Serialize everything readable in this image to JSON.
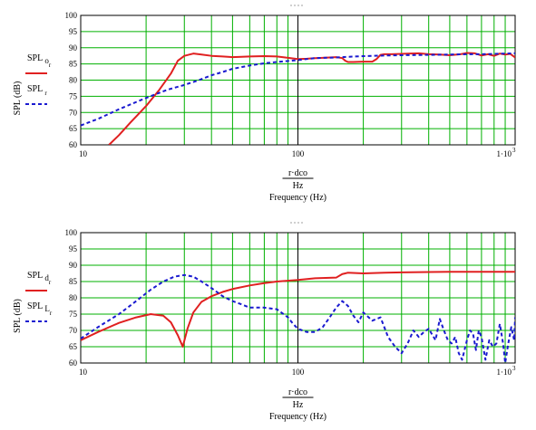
{
  "chart_data": [
    {
      "type": "line",
      "title": "",
      "x_scale": "log",
      "xlim": [
        10,
        1000
      ],
      "ylim": [
        60,
        100
      ],
      "x_ticks": [
        "10",
        "100",
        "1·10"
      ],
      "x_tick_exp": "3",
      "y_ticks": [
        "60",
        "65",
        "70",
        "75",
        "80",
        "85",
        "90",
        "95",
        "100"
      ],
      "ylabel": "SPL (dB)",
      "xlabel_frac_num": "r·dco",
      "xlabel_frac_den": "Hz",
      "xlabel": "Frequency (Hz)",
      "grid": true,
      "legend": "left",
      "series": [
        {
          "name": "SPL",
          "name_sub": "o",
          "name_subsub": "r",
          "color": "#e02020",
          "dash": "solid",
          "x": [
            13.5,
            15,
            17,
            20,
            23,
            26,
            28,
            30,
            33,
            36,
            40,
            45,
            50,
            55,
            60,
            70,
            80,
            90,
            100,
            110,
            120,
            130,
            140,
            150,
            160,
            165,
            170,
            180,
            200,
            220,
            230,
            240,
            250,
            270,
            300,
            330,
            360,
            400,
            450,
            500,
            560,
            600,
            650,
            700,
            750,
            800,
            850,
            900,
            950,
            1000
          ],
          "y": [
            60,
            63,
            67,
            72,
            77,
            82,
            86,
            87.5,
            88.2,
            87.9,
            87.5,
            87.3,
            87.1,
            87.2,
            87.3,
            87.4,
            87.3,
            86.9,
            86.5,
            86.6,
            86.8,
            86.9,
            87.0,
            87.1,
            86.8,
            86.0,
            85.6,
            85.6,
            85.7,
            85.7,
            86.5,
            87.8,
            88.0,
            88.0,
            88.1,
            88.2,
            88.3,
            88.0,
            87.9,
            87.7,
            88.0,
            88.4,
            88.3,
            87.6,
            88.0,
            87.5,
            88.2,
            87.9,
            88.1,
            87.0
          ]
        },
        {
          "name": "SPL",
          "name_sub": "",
          "name_subsub": "r",
          "color": "#1a1ad0",
          "dash": "dashed",
          "x": [
            10,
            12,
            15,
            20,
            25,
            30,
            35,
            40,
            45,
            50,
            60,
            70,
            80,
            90,
            100,
            120,
            150,
            170,
            200,
            250,
            300,
            400,
            500,
            600,
            700,
            800,
            900,
            1000
          ],
          "y": [
            66,
            68,
            71,
            74.5,
            77,
            78.5,
            80,
            81.5,
            82.5,
            83.5,
            84.5,
            85.2,
            85.6,
            85.9,
            86.2,
            86.8,
            87.0,
            87.2,
            87.4,
            87.6,
            87.7,
            87.8,
            87.9,
            88.0,
            88.0,
            88.1,
            88.2,
            88.3
          ]
        }
      ]
    },
    {
      "type": "line",
      "title": "",
      "x_scale": "log",
      "xlim": [
        10,
        1000
      ],
      "ylim": [
        60,
        100
      ],
      "x_ticks": [
        "10",
        "100",
        "1·10"
      ],
      "x_tick_exp": "3",
      "y_ticks": [
        "60",
        "65",
        "70",
        "75",
        "80",
        "85",
        "90",
        "95",
        "100"
      ],
      "ylabel": "SPL (dB)",
      "xlabel_frac_num": "r·dco",
      "xlabel_frac_den": "Hz",
      "xlabel": "Frequency (Hz)",
      "grid": true,
      "legend": "left",
      "series": [
        {
          "name": "SPL",
          "name_sub": "d",
          "name_subsub": "r",
          "color": "#e02020",
          "dash": "solid",
          "x": [
            10,
            12,
            15,
            18,
            21,
            24,
            26,
            28,
            29.5,
            31,
            33,
            36,
            40,
            45,
            50,
            60,
            70,
            80,
            100,
            120,
            150,
            160,
            170,
            200,
            250,
            300,
            400,
            500,
            600,
            700,
            800,
            900,
            1000
          ],
          "y": [
            67,
            69.5,
            72.3,
            74,
            75,
            74.5,
            72.5,
            68.5,
            65,
            70.5,
            75.5,
            78.8,
            80.5,
            81.8,
            82.7,
            83.8,
            84.5,
            85.0,
            85.5,
            86.0,
            86.2,
            87.3,
            87.7,
            87.5,
            87.7,
            87.8,
            87.9,
            88.0,
            88.0,
            88.0,
            88.0,
            88.0,
            88.0
          ]
        },
        {
          "name": "SPL",
          "name_sub": "L",
          "name_subsub": "r",
          "color": "#1a1ad0",
          "dash": "dashed",
          "x": [
            10,
            12,
            15,
            18,
            21,
            24,
            27,
            30,
            33,
            36,
            40,
            45,
            50,
            55,
            60,
            70,
            80,
            90,
            95,
            100,
            110,
            120,
            130,
            140,
            150,
            160,
            170,
            180,
            190,
            200,
            220,
            240,
            260,
            280,
            300,
            320,
            340,
            360,
            380,
            400,
            430,
            450,
            470,
            490,
            510,
            530,
            550,
            570,
            600,
            620,
            640,
            660,
            680,
            700,
            730,
            760,
            790,
            820,
            850,
            880,
            900,
            930,
            960,
            990,
            1000
          ],
          "y": [
            67.5,
            71,
            75,
            79,
            82.5,
            85,
            86.5,
            87,
            86.5,
            85,
            83,
            80.5,
            79,
            78,
            77,
            77,
            76.5,
            74,
            72,
            70.5,
            69.5,
            69.5,
            71,
            74,
            77,
            79,
            77.5,
            74.5,
            72.5,
            75.5,
            73,
            74,
            68,
            65,
            63,
            66,
            70,
            68,
            69.5,
            70.5,
            67,
            73.5,
            70,
            67,
            66,
            68,
            63,
            61,
            67,
            70,
            69,
            64,
            70,
            68,
            61,
            67,
            65,
            66,
            72,
            66,
            60,
            66,
            71,
            67,
            74
          ]
        }
      ]
    }
  ]
}
